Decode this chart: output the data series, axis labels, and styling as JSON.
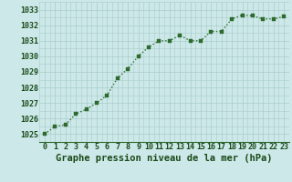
{
  "x": [
    0,
    1,
    2,
    3,
    4,
    5,
    6,
    7,
    8,
    9,
    10,
    11,
    12,
    13,
    14,
    15,
    16,
    17,
    18,
    19,
    20,
    21,
    22,
    23
  ],
  "y": [
    1025.0,
    1025.5,
    1025.6,
    1026.3,
    1026.6,
    1027.0,
    1027.5,
    1028.6,
    1029.2,
    1030.0,
    1030.6,
    1031.0,
    1031.0,
    1031.35,
    1031.0,
    1031.0,
    1031.6,
    1031.6,
    1032.4,
    1032.65,
    1032.6,
    1032.4,
    1032.4,
    1032.55
  ],
  "line_color": "#2d6a2d",
  "marker": "s",
  "marker_size": 2.5,
  "bg_color": "#cce8e8",
  "grid_color": "#aacccc",
  "title": "Graphe pression niveau de la mer (hPa)",
  "xlabel_ticks": [
    "0",
    "1",
    "2",
    "3",
    "4",
    "5",
    "6",
    "7",
    "8",
    "9",
    "10",
    "11",
    "12",
    "13",
    "14",
    "15",
    "16",
    "17",
    "18",
    "19",
    "20",
    "21",
    "22",
    "23"
  ],
  "yticks": [
    1025,
    1026,
    1027,
    1028,
    1029,
    1030,
    1031,
    1032,
    1033
  ],
  "ylim": [
    1024.6,
    1033.4
  ],
  "xlim": [
    -0.5,
    23.5
  ],
  "title_fontsize": 7.5,
  "tick_fontsize": 6.0,
  "title_color": "#1a4a1a",
  "tick_color": "#1a4a1a"
}
